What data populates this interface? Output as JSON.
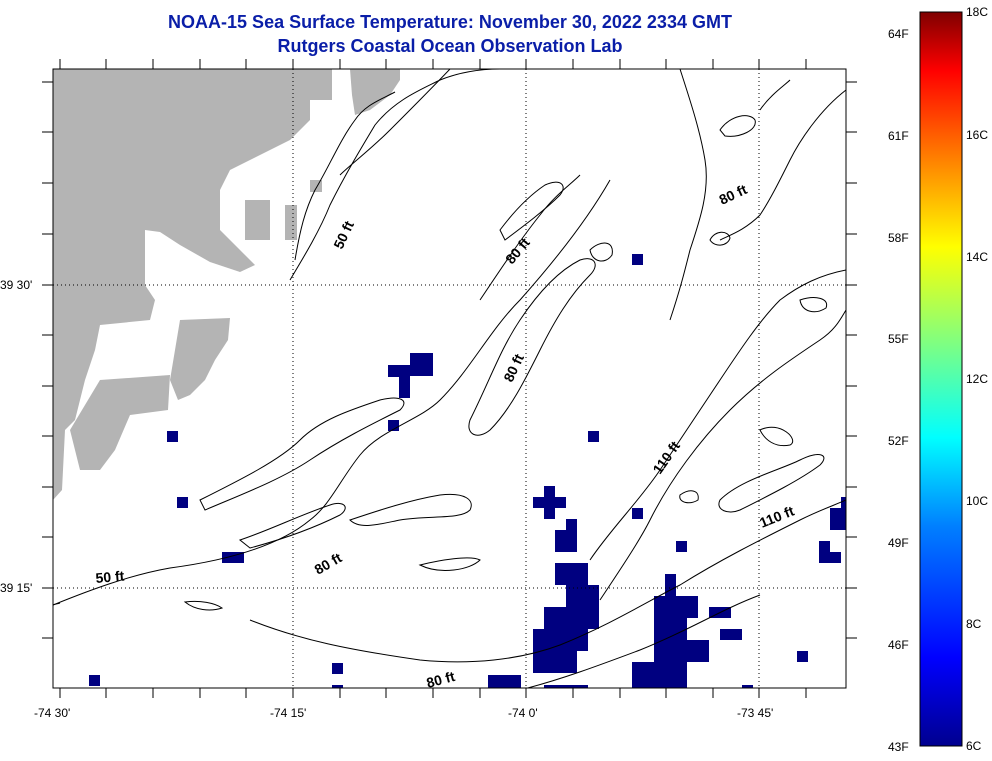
{
  "title_line1": "NOAA-15 Sea Surface Temperature:  November 30, 2022 2334 GMT",
  "title_line2": "Rutgers Coastal Ocean Observation Lab",
  "lon_ticks": [
    "-74 30'",
    "-74 15'",
    "-74 0'",
    "-73 45'"
  ],
  "lat_ticks": [
    "39 30'",
    "39 15'"
  ],
  "contour_labels": [
    "50 ft",
    "50 ft",
    "80 ft",
    "80 ft",
    "80 ft",
    "80 ft",
    "110 ft",
    "110 ft"
  ],
  "colorbar": {
    "f_labels": [
      "64F",
      "61F",
      "58F",
      "55F",
      "52F",
      "49F",
      "46F",
      "43F"
    ],
    "c_labels": [
      "18C",
      "16C",
      "14C",
      "12C",
      "10C",
      "8C",
      "6C"
    ],
    "colors": [
      "#7f0000",
      "#ff0000",
      "#ff8000",
      "#ffff00",
      "#80ff80",
      "#00ffff",
      "#0080ff",
      "#0000ff",
      "#00008f"
    ]
  },
  "colors": {
    "land": "#b4b4b4",
    "sst_pixel": "#000080",
    "title": "#0a1ea8"
  }
}
